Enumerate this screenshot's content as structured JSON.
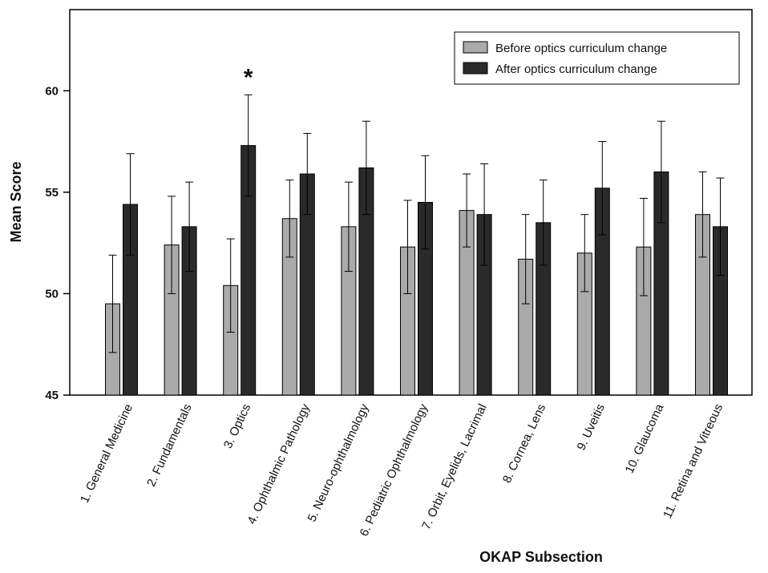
{
  "chart_data": {
    "type": "bar",
    "xlabel": "OKAP Subsection",
    "ylabel": "Mean Score",
    "ylim": [
      45,
      64
    ],
    "yticks": [
      45,
      50,
      55,
      60
    ],
    "grid": false,
    "legend_position": "top-right",
    "categories": [
      "1. General Medicine",
      "2. Fundamentals",
      "3. Optics",
      "4. Ophthalmic Pathology",
      "5. Neuro-ophthalmology",
      "6. Pediatric Ophthalmology",
      "7. Orbit, Eyelids, Lacrimal",
      "8. Cornea, Lens",
      "9. Uveitis",
      "10. Glaucoma",
      "11. Retina and Vitreous"
    ],
    "series": [
      {
        "name": "Before optics curriculum change",
        "color": "#aaaaaa",
        "values": [
          49.5,
          52.4,
          50.4,
          53.7,
          53.3,
          52.3,
          54.1,
          51.7,
          52.0,
          52.3,
          53.9
        ],
        "error": [
          2.4,
          2.4,
          2.3,
          1.9,
          2.2,
          2.3,
          1.8,
          2.2,
          1.9,
          2.4,
          2.1
        ]
      },
      {
        "name": "After optics curriculum change",
        "color": "#2a2a2a",
        "values": [
          54.4,
          53.3,
          57.3,
          55.9,
          56.2,
          54.5,
          53.9,
          53.5,
          55.2,
          56.0,
          53.3
        ],
        "error": [
          2.5,
          2.2,
          2.5,
          2.0,
          2.3,
          2.3,
          2.5,
          2.1,
          2.3,
          2.5,
          2.4
        ]
      }
    ],
    "annotations": [
      {
        "text": "*",
        "category_index": 2,
        "series_index": 1
      }
    ]
  }
}
